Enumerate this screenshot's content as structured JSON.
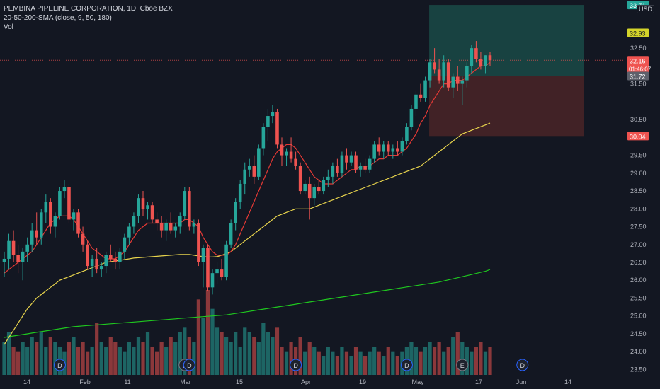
{
  "legend": {
    "line1": "PEMBINA PIPELINE CORPORATION, 1D, Cboe BZX",
    "line2": "20-50-200-SMA (close, 9, 50, 180)",
    "line3": "Vol"
  },
  "currency": "USD",
  "colors": {
    "background": "#131722",
    "up": "#26a69a",
    "down": "#ef5350",
    "sma_fast": "#e53935",
    "sma_mid": "#e8d44d",
    "sma_slow": "#1fc81f",
    "target_zone": "#1a4a46",
    "stop_zone": "#4a2427",
    "target_line": "#d4d42a"
  },
  "chart_data": {
    "type": "candlestick",
    "y_ticks": [
      "33.71",
      "32.93",
      "32.50",
      "32.16",
      "31.72",
      "31.50",
      "30.50",
      "30.04",
      "29.50",
      "29.00",
      "28.50",
      "28.00",
      "27.50",
      "27.00",
      "26.50",
      "26.00",
      "25.50",
      "25.00",
      "24.50",
      "24.00",
      "23.50"
    ],
    "ylim": [
      23.35,
      33.85
    ],
    "x_ticks": [
      "14",
      "Feb",
      "11",
      "Mar",
      "15",
      "Apr",
      "19",
      "May",
      "17",
      "Jun",
      "14"
    ],
    "price_labels": {
      "last": "32.16",
      "countdown": "01:46:07",
      "target": "32.93",
      "entry": "31.72",
      "stop": "30.04",
      "top": "33.71"
    },
    "candles": [
      [
        26.5,
        26.8,
        26.1,
        26.6
      ],
      [
        26.6,
        27.3,
        26.3,
        27.1
      ],
      [
        27.1,
        27.4,
        26.5,
        26.7
      ],
      [
        26.7,
        27.0,
        26.2,
        26.5
      ],
      [
        26.5,
        26.9,
        26.0,
        26.8
      ],
      [
        26.8,
        27.2,
        26.5,
        27.0
      ],
      [
        27.0,
        27.6,
        26.8,
        27.4
      ],
      [
        27.4,
        27.9,
        27.0,
        27.2
      ],
      [
        27.2,
        28.0,
        27.0,
        27.9
      ],
      [
        27.9,
        28.4,
        27.6,
        28.2
      ],
      [
        28.2,
        28.3,
        27.3,
        27.5
      ],
      [
        27.5,
        27.9,
        27.2,
        27.8
      ],
      [
        27.8,
        28.6,
        27.7,
        28.5
      ],
      [
        28.5,
        28.8,
        28.3,
        28.6
      ],
      [
        28.6,
        28.7,
        27.6,
        27.7
      ],
      [
        27.7,
        28.0,
        27.4,
        27.9
      ],
      [
        27.9,
        28.0,
        27.2,
        27.3
      ],
      [
        27.3,
        27.5,
        26.8,
        27.0
      ],
      [
        27.0,
        27.1,
        26.3,
        26.4
      ],
      [
        26.4,
        26.7,
        26.1,
        26.6
      ],
      [
        26.6,
        26.9,
        26.2,
        26.3
      ],
      [
        26.3,
        26.5,
        26.1,
        26.4
      ],
      [
        26.4,
        26.8,
        26.2,
        26.7
      ],
      [
        26.7,
        27.0,
        26.5,
        26.6
      ],
      [
        26.6,
        26.8,
        26.3,
        26.5
      ],
      [
        26.5,
        26.9,
        26.3,
        26.8
      ],
      [
        26.8,
        27.3,
        26.6,
        27.2
      ],
      [
        27.2,
        27.6,
        27.0,
        27.5
      ],
      [
        27.5,
        27.9,
        27.3,
        27.8
      ],
      [
        27.8,
        28.4,
        27.6,
        28.3
      ],
      [
        28.3,
        28.5,
        27.8,
        28.0
      ],
      [
        28.0,
        28.2,
        27.7,
        28.1
      ],
      [
        28.1,
        28.2,
        27.6,
        27.7
      ],
      [
        27.7,
        27.9,
        27.4,
        27.6
      ],
      [
        27.6,
        27.8,
        27.2,
        27.4
      ],
      [
        27.4,
        27.7,
        27.1,
        27.6
      ],
      [
        27.6,
        27.9,
        27.3,
        27.4
      ],
      [
        27.4,
        27.6,
        27.2,
        27.5
      ],
      [
        27.5,
        27.9,
        27.3,
        27.8
      ],
      [
        27.8,
        28.6,
        27.7,
        28.5
      ],
      [
        28.5,
        28.6,
        27.4,
        27.5
      ],
      [
        27.5,
        27.7,
        27.3,
        27.6
      ],
      [
        27.6,
        27.7,
        26.4,
        26.5
      ],
      [
        26.5,
        27.0,
        25.8,
        26.9
      ],
      [
        26.9,
        27.0,
        25.7,
        25.8
      ],
      [
        25.8,
        26.3,
        25.6,
        26.2
      ],
      [
        26.2,
        26.5,
        25.9,
        26.3
      ],
      [
        26.3,
        26.6,
        26.0,
        26.1
      ],
      [
        26.1,
        27.1,
        26.0,
        27.0
      ],
      [
        27.0,
        27.7,
        26.9,
        27.6
      ],
      [
        27.6,
        28.3,
        27.4,
        28.2
      ],
      [
        28.2,
        28.8,
        28.0,
        28.7
      ],
      [
        28.7,
        29.3,
        28.4,
        29.1
      ],
      [
        29.1,
        29.4,
        28.9,
        29.2
      ],
      [
        29.2,
        29.5,
        28.7,
        28.9
      ],
      [
        28.9,
        29.8,
        28.8,
        29.7
      ],
      [
        29.7,
        30.4,
        29.5,
        30.3
      ],
      [
        30.3,
        30.8,
        29.9,
        30.6
      ],
      [
        30.6,
        30.9,
        30.4,
        30.7
      ],
      [
        30.7,
        30.8,
        29.7,
        29.8
      ],
      [
        29.8,
        30.0,
        29.2,
        29.5
      ],
      [
        29.5,
        29.7,
        29.2,
        29.6
      ],
      [
        29.6,
        30.0,
        29.3,
        29.4
      ],
      [
        29.4,
        29.6,
        29.1,
        29.2
      ],
      [
        29.2,
        29.3,
        28.4,
        28.5
      ],
      [
        28.5,
        28.8,
        28.4,
        28.7
      ],
      [
        28.7,
        28.9,
        27.7,
        28.3
      ],
      [
        28.3,
        28.7,
        28.1,
        28.6
      ],
      [
        28.6,
        28.8,
        28.4,
        28.5
      ],
      [
        28.5,
        28.9,
        28.4,
        28.8
      ],
      [
        28.8,
        29.1,
        28.6,
        28.9
      ],
      [
        28.9,
        29.3,
        28.7,
        29.2
      ],
      [
        29.2,
        29.4,
        28.9,
        29.0
      ],
      [
        29.0,
        29.6,
        28.9,
        29.5
      ],
      [
        29.5,
        29.7,
        29.1,
        29.3
      ],
      [
        29.3,
        29.6,
        29.2,
        29.5
      ],
      [
        29.5,
        29.6,
        29.0,
        29.1
      ],
      [
        29.1,
        29.3,
        28.9,
        29.2
      ],
      [
        29.2,
        29.4,
        29.0,
        29.1
      ],
      [
        29.1,
        29.5,
        29.0,
        29.4
      ],
      [
        29.4,
        29.9,
        29.3,
        29.8
      ],
      [
        29.8,
        30.0,
        29.5,
        29.6
      ],
      [
        29.6,
        29.9,
        29.4,
        29.8
      ],
      [
        29.8,
        29.9,
        29.5,
        29.6
      ],
      [
        29.6,
        29.8,
        29.4,
        29.7
      ],
      [
        29.7,
        29.9,
        29.5,
        29.6
      ],
      [
        29.6,
        30.0,
        29.5,
        29.9
      ],
      [
        29.9,
        30.4,
        29.8,
        30.3
      ],
      [
        30.3,
        30.9,
        30.2,
        30.8
      ],
      [
        30.8,
        31.3,
        30.6,
        31.2
      ],
      [
        31.2,
        31.5,
        31.0,
        31.1
      ],
      [
        31.1,
        31.7,
        31.0,
        31.6
      ],
      [
        31.6,
        32.2,
        31.4,
        32.1
      ],
      [
        32.1,
        32.5,
        31.8,
        31.9
      ],
      [
        31.9,
        32.2,
        31.5,
        31.6
      ],
      [
        31.6,
        32.3,
        31.4,
        32.1
      ],
      [
        32.1,
        32.2,
        31.3,
        31.4
      ],
      [
        31.4,
        31.8,
        31.1,
        31.7
      ],
      [
        31.7,
        32.0,
        31.3,
        31.5
      ],
      [
        31.5,
        31.7,
        30.9,
        31.6
      ],
      [
        31.6,
        32.1,
        31.4,
        32.0
      ],
      [
        32.0,
        32.6,
        31.8,
        32.5
      ],
      [
        32.5,
        32.7,
        32.1,
        32.2
      ],
      [
        32.2,
        32.4,
        31.9,
        32.0
      ],
      [
        32.0,
        32.3,
        31.8,
        32.3
      ],
      [
        32.3,
        32.4,
        32.0,
        32.16
      ]
    ],
    "volume": [
      7,
      9,
      6,
      5,
      7,
      6,
      8,
      7,
      9,
      6,
      8,
      7,
      6,
      5,
      7,
      8,
      6,
      7,
      5,
      6,
      11,
      7,
      6,
      8,
      7,
      6,
      5,
      7,
      6,
      8,
      7,
      9,
      6,
      5,
      7,
      6,
      8,
      7,
      9,
      10,
      8,
      7,
      16,
      12,
      18,
      14,
      10,
      9,
      8,
      7,
      9,
      6,
      10,
      9,
      8,
      7,
      11,
      9,
      8,
      10,
      6,
      5,
      7,
      6,
      8,
      5,
      7,
      6,
      5,
      4,
      6,
      5,
      4,
      6,
      5,
      4,
      6,
      5,
      4,
      5,
      6,
      5,
      4,
      6,
      5,
      4,
      5,
      6,
      7,
      6,
      5,
      6,
      7,
      6,
      7,
      5,
      6,
      8,
      9,
      7,
      6,
      5,
      6,
      7,
      5,
      6
    ],
    "sma_fast": [
      26.2,
      26.3,
      26.4,
      26.5,
      26.6,
      26.7,
      26.8,
      27.0,
      27.2,
      27.4,
      27.6,
      27.7,
      27.8,
      27.8,
      27.8,
      27.7,
      27.5,
      27.3,
      27.1,
      26.9,
      26.8,
      26.7,
      26.6,
      26.6,
      26.6,
      26.7,
      26.8,
      27.0,
      27.2,
      27.4,
      27.5,
      27.6,
      27.6,
      27.6,
      27.6,
      27.6,
      27.6,
      27.6,
      27.6,
      27.7,
      27.7,
      27.6,
      27.5,
      27.2,
      27.0,
      26.8,
      26.7,
      26.7,
      26.7,
      26.8,
      27.0,
      27.3,
      27.6,
      27.9,
      28.2,
      28.5,
      28.8,
      29.1,
      29.4,
      29.6,
      29.7,
      29.8,
      29.8,
      29.7,
      29.5,
      29.3,
      29.1,
      28.9,
      28.8,
      28.7,
      28.7,
      28.7,
      28.8,
      28.9,
      29.0,
      29.1,
      29.1,
      29.2,
      29.2,
      29.2,
      29.3,
      29.4,
      29.4,
      29.5,
      29.5,
      29.5,
      29.6,
      29.7,
      29.9,
      30.1,
      30.4,
      30.6,
      30.9,
      31.1,
      31.3,
      31.5,
      31.5,
      31.6,
      31.6,
      31.6,
      31.7,
      31.8,
      31.9,
      32.0,
      32.0,
      32.1
    ],
    "sma_mid": [
      24.2,
      24.4,
      24.6,
      24.8,
      25.0,
      25.2,
      25.35,
      25.5,
      25.6,
      25.7,
      25.8,
      25.9,
      26.0,
      26.05,
      26.1,
      26.15,
      26.2,
      26.25,
      26.3,
      26.35,
      26.4,
      26.45,
      26.5,
      26.52,
      26.54,
      26.56,
      26.58,
      26.6,
      26.62,
      26.63,
      26.64,
      26.65,
      26.66,
      26.67,
      26.68,
      26.69,
      26.7,
      26.71,
      26.72,
      26.72,
      26.72,
      26.7,
      26.68,
      26.66,
      26.65,
      26.65,
      26.66,
      26.7,
      26.75,
      26.8,
      26.9,
      27.0,
      27.1,
      27.2,
      27.3,
      27.4,
      27.5,
      27.6,
      27.7,
      27.8,
      27.85,
      27.9,
      27.95,
      28.0,
      28.0,
      28.0,
      28.0,
      28.05,
      28.1,
      28.15,
      28.2,
      28.25,
      28.3,
      28.35,
      28.4,
      28.45,
      28.5,
      28.55,
      28.6,
      28.65,
      28.7,
      28.75,
      28.8,
      28.85,
      28.9,
      28.95,
      29.0,
      29.05,
      29.1,
      29.15,
      29.2,
      29.3,
      29.4,
      29.5,
      29.6,
      29.7,
      29.8,
      29.9,
      30.0,
      30.1,
      30.15,
      30.2,
      30.25,
      30.3,
      30.35,
      30.4
    ],
    "sma_slow": [
      24.4,
      24.42,
      24.44,
      24.46,
      24.48,
      24.5,
      24.52,
      24.54,
      24.56,
      24.58,
      24.6,
      24.62,
      24.64,
      24.66,
      24.68,
      24.7,
      24.71,
      24.72,
      24.73,
      24.74,
      24.75,
      24.76,
      24.77,
      24.78,
      24.79,
      24.8,
      24.81,
      24.82,
      24.83,
      24.84,
      24.85,
      24.86,
      24.87,
      24.88,
      24.89,
      24.9,
      24.91,
      24.92,
      24.93,
      24.94,
      24.95,
      24.96,
      24.97,
      24.98,
      24.99,
      25.0,
      25.01,
      25.02,
      25.03,
      25.05,
      25.07,
      25.09,
      25.11,
      25.13,
      25.15,
      25.17,
      25.19,
      25.21,
      25.23,
      25.25,
      25.27,
      25.29,
      25.31,
      25.33,
      25.35,
      25.37,
      25.39,
      25.41,
      25.43,
      25.45,
      25.47,
      25.49,
      25.51,
      25.53,
      25.55,
      25.57,
      25.59,
      25.61,
      25.63,
      25.65,
      25.67,
      25.69,
      25.71,
      25.73,
      25.75,
      25.77,
      25.79,
      25.81,
      25.83,
      25.85,
      25.87,
      25.89,
      25.91,
      25.93,
      25.95,
      25.98,
      26.01,
      26.04,
      26.07,
      26.1,
      26.13,
      26.16,
      26.19,
      26.22,
      26.25,
      26.3
    ],
    "event_markers": [
      {
        "label": "D",
        "index": 12
      },
      {
        "label": "E",
        "index": 39
      },
      {
        "label": "D",
        "index": 40
      },
      {
        "label": "D",
        "index": 63
      },
      {
        "label": "D",
        "index": 87
      },
      {
        "label": "E",
        "index": 99
      },
      {
        "label": "D",
        "index": 112
      }
    ]
  }
}
